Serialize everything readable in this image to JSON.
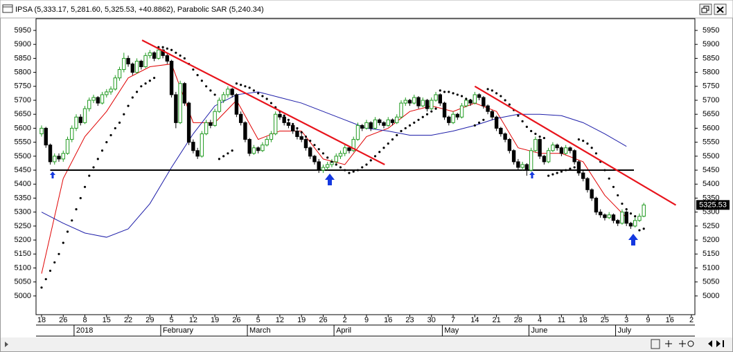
{
  "chart_data": {
    "type": "candlestick",
    "title": "IPSA (5,333.17, 5,281.60, 5,325.53, +40.8862), Parabolic SAR (5,240.34)",
    "categories": [
      "18",
      "26",
      "8",
      "15",
      "22",
      "29",
      "5",
      "12",
      "19",
      "26",
      "5",
      "12",
      "19",
      "26",
      "2",
      "9",
      "16",
      "23",
      "30",
      "7",
      "14",
      "21",
      "28",
      "4",
      "11",
      "18",
      "25",
      "3",
      "9",
      "16",
      "2"
    ],
    "months": [
      "2018",
      "February",
      "March",
      "April",
      "May",
      "June",
      "July"
    ],
    "ylim": [
      4933,
      5992
    ],
    "yticks": [
      5000,
      5050,
      5100,
      5150,
      5200,
      5250,
      5300,
      5350,
      5400,
      5450,
      5500,
      5550,
      5600,
      5650,
      5700,
      5750,
      5800,
      5850,
      5900,
      5950
    ],
    "up_color": "#1f9a1f",
    "down_color": "#000000",
    "candles": [
      [
        5580,
        5610,
        5570,
        5600
      ],
      [
        5600,
        5605,
        5530,
        5540
      ],
      [
        5540,
        5545,
        5470,
        5480
      ],
      [
        5480,
        5510,
        5470,
        5500
      ],
      [
        5500,
        5510,
        5480,
        5490
      ],
      [
        5490,
        5520,
        5480,
        5510
      ],
      [
        5510,
        5570,
        5505,
        5560
      ],
      [
        5560,
        5610,
        5550,
        5600
      ],
      [
        5600,
        5650,
        5590,
        5640
      ],
      [
        5640,
        5650,
        5610,
        5620
      ],
      [
        5620,
        5680,
        5615,
        5670
      ],
      [
        5670,
        5710,
        5660,
        5700
      ],
      [
        5700,
        5720,
        5690,
        5710
      ],
      [
        5710,
        5715,
        5680,
        5690
      ],
      [
        5690,
        5730,
        5685,
        5720
      ],
      [
        5720,
        5740,
        5710,
        5730
      ],
      [
        5730,
        5750,
        5720,
        5740
      ],
      [
        5740,
        5790,
        5735,
        5780
      ],
      [
        5780,
        5820,
        5770,
        5810
      ],
      [
        5810,
        5870,
        5800,
        5850
      ],
      [
        5850,
        5860,
        5820,
        5830
      ],
      [
        5830,
        5835,
        5790,
        5800
      ],
      [
        5800,
        5850,
        5795,
        5840
      ],
      [
        5840,
        5845,
        5810,
        5820
      ],
      [
        5820,
        5870,
        5815,
        5860
      ],
      [
        5860,
        5880,
        5850,
        5870
      ],
      [
        5870,
        5875,
        5840,
        5850
      ],
      [
        5850,
        5890,
        5845,
        5880
      ],
      [
        5880,
        5885,
        5850,
        5860
      ],
      [
        5860,
        5870,
        5830,
        5840
      ],
      [
        5840,
        5845,
        5710,
        5720
      ],
      [
        5720,
        5730,
        5600,
        5620
      ],
      [
        5620,
        5770,
        5615,
        5760
      ],
      [
        5760,
        5765,
        5680,
        5690
      ],
      [
        5690,
        5695,
        5540,
        5550
      ],
      [
        5550,
        5560,
        5510,
        5520
      ],
      [
        5520,
        5530,
        5490,
        5500
      ],
      [
        5500,
        5590,
        5495,
        5580
      ],
      [
        5580,
        5630,
        5575,
        5620
      ],
      [
        5620,
        5630,
        5600,
        5610
      ],
      [
        5610,
        5670,
        5605,
        5660
      ],
      [
        5660,
        5710,
        5655,
        5700
      ],
      [
        5700,
        5730,
        5690,
        5720
      ],
      [
        5720,
        5750,
        5710,
        5740
      ],
      [
        5740,
        5745,
        5710,
        5720
      ],
      [
        5720,
        5725,
        5640,
        5650
      ],
      [
        5650,
        5660,
        5610,
        5620
      ],
      [
        5620,
        5625,
        5550,
        5560
      ],
      [
        5560,
        5565,
        5500,
        5510
      ],
      [
        5510,
        5540,
        5505,
        5530
      ],
      [
        5530,
        5535,
        5510,
        5520
      ],
      [
        5520,
        5550,
        5515,
        5540
      ],
      [
        5540,
        5570,
        5535,
        5560
      ],
      [
        5560,
        5590,
        5550,
        5580
      ],
      [
        5580,
        5660,
        5575,
        5650
      ],
      [
        5650,
        5660,
        5630,
        5640
      ],
      [
        5640,
        5645,
        5610,
        5620
      ],
      [
        5620,
        5630,
        5600,
        5610
      ],
      [
        5610,
        5615,
        5580,
        5590
      ],
      [
        5590,
        5600,
        5560,
        5570
      ],
      [
        5570,
        5580,
        5550,
        5560
      ],
      [
        5560,
        5565,
        5520,
        5530
      ],
      [
        5530,
        5535,
        5490,
        5500
      ],
      [
        5500,
        5505,
        5470,
        5480
      ],
      [
        5480,
        5490,
        5440,
        5450
      ],
      [
        5450,
        5470,
        5440,
        5460
      ],
      [
        5460,
        5480,
        5450,
        5470
      ],
      [
        5470,
        5490,
        5460,
        5480
      ],
      [
        5480,
        5510,
        5470,
        5500
      ],
      [
        5500,
        5520,
        5490,
        5510
      ],
      [
        5510,
        5540,
        5500,
        5530
      ],
      [
        5530,
        5535,
        5510,
        5520
      ],
      [
        5520,
        5570,
        5515,
        5560
      ],
      [
        5560,
        5620,
        5555,
        5610
      ],
      [
        5610,
        5615,
        5590,
        5600
      ],
      [
        5600,
        5630,
        5595,
        5620
      ],
      [
        5620,
        5625,
        5590,
        5600
      ],
      [
        5600,
        5640,
        5595,
        5630
      ],
      [
        5630,
        5635,
        5610,
        5620
      ],
      [
        5620,
        5625,
        5600,
        5610
      ],
      [
        5610,
        5640,
        5605,
        5630
      ],
      [
        5630,
        5635,
        5610,
        5620
      ],
      [
        5620,
        5650,
        5615,
        5640
      ],
      [
        5640,
        5700,
        5635,
        5690
      ],
      [
        5690,
        5710,
        5680,
        5700
      ],
      [
        5700,
        5705,
        5680,
        5690
      ],
      [
        5690,
        5720,
        5685,
        5710
      ],
      [
        5710,
        5715,
        5670,
        5680
      ],
      [
        5680,
        5710,
        5675,
        5700
      ],
      [
        5700,
        5705,
        5660,
        5670
      ],
      [
        5670,
        5710,
        5665,
        5700
      ],
      [
        5700,
        5730,
        5695,
        5720
      ],
      [
        5720,
        5725,
        5680,
        5690
      ],
      [
        5690,
        5695,
        5630,
        5640
      ],
      [
        5640,
        5645,
        5610,
        5620
      ],
      [
        5620,
        5660,
        5615,
        5650
      ],
      [
        5650,
        5655,
        5630,
        5640
      ],
      [
        5640,
        5690,
        5635,
        5680
      ],
      [
        5680,
        5710,
        5675,
        5700
      ],
      [
        5700,
        5705,
        5680,
        5690
      ],
      [
        5690,
        5730,
        5685,
        5720
      ],
      [
        5720,
        5725,
        5700,
        5710
      ],
      [
        5710,
        5715,
        5670,
        5680
      ],
      [
        5680,
        5685,
        5650,
        5660
      ],
      [
        5660,
        5665,
        5630,
        5640
      ],
      [
        5640,
        5645,
        5590,
        5600
      ],
      [
        5600,
        5605,
        5570,
        5580
      ],
      [
        5580,
        5585,
        5550,
        5560
      ],
      [
        5560,
        5565,
        5510,
        5520
      ],
      [
        5520,
        5525,
        5470,
        5480
      ],
      [
        5480,
        5490,
        5450,
        5460
      ],
      [
        5460,
        5480,
        5450,
        5470
      ],
      [
        5470,
        5475,
        5430,
        5450
      ],
      [
        5450,
        5530,
        5445,
        5520
      ],
      [
        5520,
        5570,
        5515,
        5560
      ],
      [
        5560,
        5565,
        5490,
        5500
      ],
      [
        5500,
        5505,
        5470,
        5480
      ],
      [
        5480,
        5530,
        5475,
        5520
      ],
      [
        5520,
        5550,
        5515,
        5540
      ],
      [
        5540,
        5545,
        5520,
        5530
      ],
      [
        5530,
        5535,
        5500,
        5510
      ],
      [
        5510,
        5540,
        5505,
        5530
      ],
      [
        5530,
        5535,
        5510,
        5520
      ],
      [
        5520,
        5525,
        5470,
        5480
      ],
      [
        5480,
        5485,
        5430,
        5440
      ],
      [
        5440,
        5450,
        5410,
        5420
      ],
      [
        5420,
        5425,
        5370,
        5380
      ],
      [
        5380,
        5385,
        5340,
        5350
      ],
      [
        5350,
        5355,
        5290,
        5300
      ],
      [
        5300,
        5310,
        5280,
        5290
      ],
      [
        5290,
        5295,
        5270,
        5280
      ],
      [
        5280,
        5300,
        5275,
        5290
      ],
      [
        5290,
        5295,
        5260,
        5270
      ],
      [
        5270,
        5275,
        5250,
        5260
      ],
      [
        5260,
        5310,
        5255,
        5300
      ],
      [
        5300,
        5305,
        5250,
        5260
      ],
      [
        5260,
        5265,
        5240,
        5250
      ],
      [
        5250,
        5280,
        5245,
        5270
      ],
      [
        5270,
        5295,
        5265,
        5285
      ],
      [
        5285,
        5333.17,
        5281.6,
        5325.53
      ]
    ],
    "sar_color": "#000000",
    "sar": [
      5030,
      5060,
      5090,
      5120,
      5150,
      5190,
      5230,
      5270,
      5310,
      5350,
      5390,
      5430,
      5460,
      5490,
      5520,
      5550,
      5575,
      5600,
      5620,
      5650,
      5680,
      5710,
      5730,
      5750,
      5760,
      5770,
      5780,
      5890,
      5890,
      5885,
      5880,
      5870,
      5860,
      5850,
      5830,
      5810,
      5790,
      5770,
      5750,
      5735,
      5720,
      5490,
      5500,
      5510,
      5520,
      5760,
      5755,
      5750,
      5745,
      5735,
      5725,
      5715,
      5705,
      5690,
      5675,
      5660,
      5645,
      5630,
      5615,
      5600,
      5585,
      5570,
      5555,
      5540,
      5525,
      5510,
      5495,
      5480,
      5470,
      5460,
      5450,
      5440,
      5445,
      5450,
      5460,
      5470,
      5485,
      5500,
      5515,
      5530,
      5545,
      5560,
      5575,
      5590,
      5600,
      5610,
      5620,
      5630,
      5640,
      5650,
      5660,
      5670,
      5735,
      5730,
      5730,
      5725,
      5720,
      5715,
      5705,
      5700,
      5610,
      5620,
      5630,
      5740,
      5735,
      5725,
      5715,
      5700,
      5685,
      5665,
      5645,
      5625,
      5605,
      5590,
      5580,
      5570,
      5565,
      5430,
      5435,
      5440,
      5445,
      5450,
      5455,
      5460,
      5560,
      5555,
      5545,
      5530,
      5510,
      5480,
      5450,
      5420,
      5390,
      5360,
      5330,
      5310,
      5295,
      5285,
      5235,
      5240.34
    ],
    "lines": [
      {
        "color": "#e00000",
        "values": [
          5080,
          5420,
          5570,
          5660,
          5780,
          5820,
          5830,
          5620,
          5620,
          5700,
          5560,
          5590,
          5590,
          5490,
          5470,
          5570,
          5600,
          5660,
          5680,
          5660,
          5690,
          5660,
          5530,
          5510,
          5510,
          5480,
          5360,
          5280,
          null,
          null,
          null
        ]
      },
      {
        "color": "#1c1ca8",
        "values": [
          5300,
          5260,
          5225,
          5210,
          5240,
          5330,
          5460,
          5580,
          5680,
          5720,
          5730,
          5710,
          5690,
          5660,
          5630,
          5600,
          5590,
          5575,
          5575,
          5590,
          5610,
          5635,
          5650,
          5650,
          5645,
          5620,
          5580,
          5535,
          null,
          null,
          null
        ]
      }
    ],
    "hline": {
      "value": 5450,
      "color": "#000000"
    },
    "trendlines": [
      {
        "values": [
          5915,
          5470
        ],
        "color": "#e8141c"
      },
      {
        "values": [
          5750,
          5325
        ],
        "color": "#e8141c"
      }
    ],
    "last_price": 5325.53
  }
}
